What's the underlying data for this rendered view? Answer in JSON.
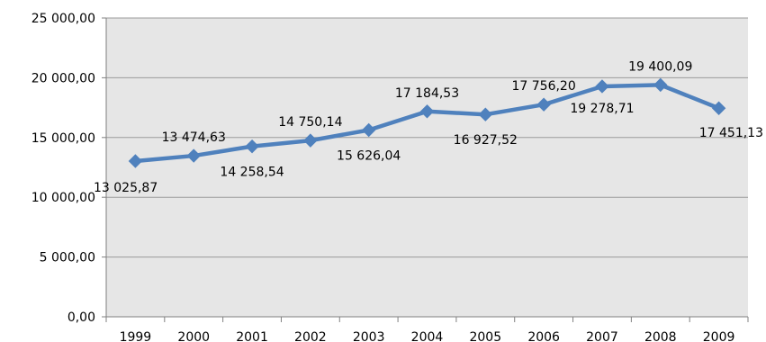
{
  "colors": {
    "series": "#4F81BD",
    "plot_background": "#E6E6E6",
    "gridline": "#9A9A9A",
    "axis": "#808080",
    "page_background": "#FFFFFF"
  },
  "chart_data": {
    "type": "line",
    "title": "",
    "xlabel": "",
    "ylabel": "",
    "categories": [
      "1999",
      "2000",
      "2001",
      "2002",
      "2003",
      "2004",
      "2005",
      "2006",
      "2007",
      "2008",
      "2009"
    ],
    "series": [
      {
        "values": [
          13025.87,
          13474.63,
          14258.54,
          14750.14,
          15626.04,
          17184.53,
          16927.52,
          17756.2,
          19278.71,
          19400.09,
          17451.13
        ],
        "data_labels": [
          "13 025,87",
          "13 474,63",
          "14 258,54",
          "14 750,14",
          "15 626,04",
          "17 184,53",
          "16 927,52",
          "17 756,20",
          "19 278,71",
          "19 400,09",
          "17 451,13"
        ],
        "marker": "diamond"
      }
    ],
    "ylim": [
      0,
      25000
    ],
    "y_ticks": [
      0,
      5000,
      10000,
      15000,
      20000,
      25000
    ],
    "y_tick_labels": [
      "0,00",
      "5 000,00",
      "10 000,00",
      "15 000,00",
      "20 000,00",
      "25 000,00"
    ],
    "grid": true,
    "legend": "none"
  }
}
